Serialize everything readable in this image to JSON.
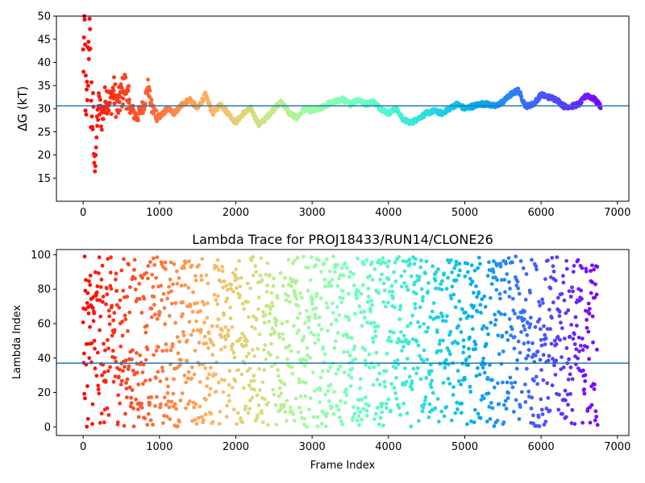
{
  "chart_data": [
    {
      "type": "scatter",
      "title": "",
      "xlabel": "",
      "ylabel": "ΔG (kT)",
      "xlim": [
        -350,
        7150
      ],
      "ylim": [
        10,
        50
      ],
      "xticks": [
        0,
        1000,
        2000,
        3000,
        4000,
        5000,
        6000,
        7000
      ],
      "xtick_labels": [
        "0",
        "1000",
        "2000",
        "3000",
        "4000",
        "5000",
        "6000",
        "7000"
      ],
      "yticks": [
        15,
        20,
        25,
        30,
        35,
        40,
        45,
        50
      ],
      "ytick_labels": [
        "15",
        "20",
        "25",
        "30",
        "35",
        "40",
        "45",
        "50"
      ],
      "reference_line_y": 30.6,
      "colormap": "rainbow (red at frame 0 to violet at last frame)",
      "grid": false,
      "series": [
        {
          "x": [
            0,
            20,
            40,
            60,
            80,
            100,
            120,
            150,
            180,
            200,
            250,
            300,
            350,
            400,
            450,
            500,
            550,
            600,
            700,
            800,
            850,
            900,
            1000,
            1100,
            1200,
            1300,
            1400,
            1500,
            1600,
            1700,
            1800,
            1900,
            2000,
            2100,
            2200,
            2300,
            2400,
            2500,
            2600,
            2700,
            2800,
            2900,
            3000,
            3100,
            3200,
            3300,
            3400,
            3500,
            3600,
            3700,
            3800,
            3900,
            4000,
            4100,
            4200,
            4300,
            4400,
            4500,
            4600,
            4700,
            4800,
            4900,
            5000,
            5100,
            5200,
            5300,
            5400,
            5500,
            5600,
            5700,
            5800,
            5900,
            6000,
            6100,
            6200,
            6300,
            6400,
            6500,
            6600,
            6700,
            6780
          ],
          "y": [
            40,
            46,
            25,
            38,
            48,
            33,
            30,
            17.5,
            25,
            31,
            28,
            33,
            31,
            34,
            30,
            33,
            35,
            31,
            28,
            31,
            35,
            30,
            28,
            30,
            29,
            31,
            32,
            30,
            33,
            29,
            31,
            29,
            27,
            29,
            30,
            26.5,
            28,
            30,
            31.5,
            29,
            28,
            30,
            29.5,
            30,
            31,
            31.5,
            32,
            31,
            32,
            31,
            31.5,
            30,
            29,
            30,
            27.5,
            27,
            28,
            29,
            29.5,
            29,
            30,
            31,
            30,
            30.5,
            31,
            31,
            30.5,
            31.5,
            33,
            34,
            30.5,
            31,
            33,
            32.5,
            32,
            30.5,
            30.5,
            31,
            33,
            32,
            30.5
          ]
        }
      ]
    },
    {
      "type": "scatter",
      "title": "Lambda Trace for PROJ18433/RUN14/CLONE26",
      "xlabel": "Frame Index",
      "ylabel": "Lambda Index",
      "xlim": [
        -350,
        7150
      ],
      "ylim": [
        -5,
        103
      ],
      "xticks": [
        0,
        1000,
        2000,
        3000,
        4000,
        5000,
        6000,
        7000
      ],
      "xtick_labels": [
        "0",
        "1000",
        "2000",
        "3000",
        "4000",
        "5000",
        "6000",
        "7000"
      ],
      "yticks": [
        0,
        20,
        40,
        60,
        80,
        100
      ],
      "ytick_labels": [
        "0",
        "20",
        "40",
        "60",
        "80",
        "100"
      ],
      "reference_line_y": 37,
      "frame_range": [
        0,
        6780
      ],
      "lambda_range": [
        0,
        99
      ],
      "colormap": "rainbow (red at frame 0 to violet at last frame)",
      "grid": false,
      "series": [
        {
          "x": [
            0,
            50,
            100,
            150,
            200,
            300,
            400,
            500,
            600,
            700,
            800,
            900,
            1000,
            1100,
            1200,
            1300,
            1400,
            1500,
            1600,
            1700,
            1800,
            1900,
            2000,
            2100,
            2200,
            2300,
            2400,
            2500,
            2600,
            2700,
            2800,
            2900,
            3000,
            3100,
            3200,
            3300,
            3400,
            3500,
            3600,
            3700,
            3800,
            3900,
            4000,
            4100,
            4200,
            4300,
            4400,
            4500,
            4600,
            4700,
            4800,
            4900,
            5000,
            5100,
            5200,
            5300,
            5400,
            5500,
            5600,
            5700,
            5800,
            5900,
            6000,
            6100,
            6200,
            6300,
            6400,
            6500,
            6600,
            6700
          ],
          "y": [
            87,
            45,
            12,
            70,
            95,
            33,
            60,
            18,
            82,
            40,
            5,
            90,
            55,
            25,
            75,
            10,
            65,
            48,
            30,
            85,
            15,
            58,
            92,
            38,
            70,
            20,
            8,
            50,
            95,
            28,
            62,
            12,
            80,
            45,
            35,
            90,
            5,
            68,
            22,
            98,
            55,
            30,
            75,
            10,
            88,
            42,
            18,
            65,
            35,
            95,
            5,
            50,
            82,
            25,
            60,
            40,
            15,
            92,
            70,
            30,
            55,
            85,
            8,
            48,
            78,
            20,
            65,
            38,
            95,
            12
          ]
        }
      ]
    }
  ]
}
